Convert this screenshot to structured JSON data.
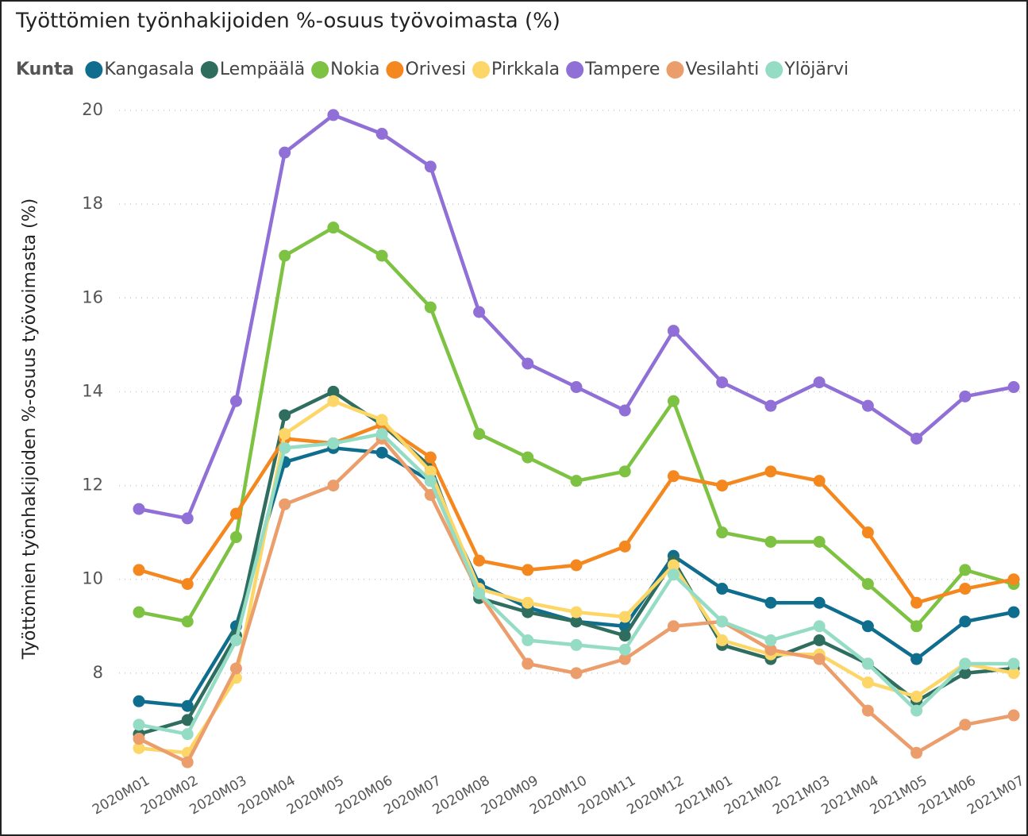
{
  "chart_data": {
    "type": "line",
    "title": "Työttömien työnhakijoiden %-osuus työvoimasta (%)",
    "legend_title": "Kunta",
    "y_label": "Työttömien työnhakijoiden %-osuus työvoimasta (%)",
    "categories": [
      "2020M01",
      "2020M02",
      "2020M03",
      "2020M04",
      "2020M05",
      "2020M06",
      "2020M07",
      "2020M08",
      "2020M09",
      "2020M10",
      "2020M11",
      "2020M12",
      "2021M01",
      "2021M02",
      "2021M03",
      "2021M04",
      "2021M05",
      "2021M06",
      "2021M07"
    ],
    "ylim": [
      6,
      20
    ],
    "yticks": [
      8,
      10,
      12,
      14,
      16,
      18,
      20
    ],
    "grid": true,
    "legend": "top",
    "series": [
      {
        "name": "Kangasala",
        "color": "#0f6e8e",
        "values": [
          7.4,
          7.3,
          9.0,
          12.5,
          12.8,
          12.7,
          12.1,
          9.9,
          9.4,
          9.1,
          9.0,
          10.5,
          9.8,
          9.5,
          9.5,
          9.0,
          8.3,
          9.1,
          9.3
        ]
      },
      {
        "name": "Lempäälä",
        "color": "#2f6e5f",
        "values": [
          6.7,
          7.0,
          8.8,
          13.5,
          14.0,
          13.3,
          12.4,
          9.6,
          9.3,
          9.1,
          8.8,
          10.4,
          8.6,
          8.3,
          8.7,
          8.2,
          7.4,
          8.0,
          8.1
        ]
      },
      {
        "name": "Nokia",
        "color": "#7dc242",
        "values": [
          9.3,
          9.1,
          10.9,
          16.9,
          17.5,
          16.9,
          15.8,
          13.1,
          12.6,
          12.1,
          12.3,
          13.8,
          11.0,
          10.8,
          10.8,
          9.9,
          9.0,
          10.2,
          9.9
        ]
      },
      {
        "name": "Orivesi",
        "color": "#f5871f",
        "values": [
          10.2,
          9.9,
          11.4,
          13.0,
          12.9,
          13.3,
          12.6,
          10.4,
          10.2,
          10.3,
          10.7,
          12.2,
          12.0,
          12.3,
          12.1,
          11.0,
          9.5,
          9.8,
          10.0
        ]
      },
      {
        "name": "Pirkkala",
        "color": "#fdd668",
        "values": [
          6.4,
          6.3,
          7.9,
          13.1,
          13.8,
          13.4,
          12.3,
          9.8,
          9.5,
          9.3,
          9.2,
          10.3,
          8.7,
          8.4,
          8.4,
          7.8,
          7.5,
          8.2,
          8.0
        ]
      },
      {
        "name": "Tampere",
        "color": "#9070d6",
        "values": [
          11.5,
          11.3,
          13.8,
          19.1,
          19.9,
          19.5,
          18.8,
          15.7,
          14.6,
          14.1,
          13.6,
          15.3,
          14.2,
          13.7,
          14.2,
          13.7,
          13.0,
          13.9,
          14.1
        ]
      },
      {
        "name": "Vesilahti",
        "color": "#eb9e6c",
        "values": [
          6.6,
          6.1,
          8.1,
          11.6,
          12.0,
          13.0,
          11.8,
          9.7,
          8.2,
          8.0,
          8.3,
          9.0,
          9.1,
          8.5,
          8.3,
          7.2,
          6.3,
          6.9,
          7.1
        ]
      },
      {
        "name": "Ylöjärvi",
        "color": "#95dcc5",
        "values": [
          6.9,
          6.7,
          8.7,
          12.8,
          12.9,
          13.1,
          12.1,
          9.7,
          8.7,
          8.6,
          8.5,
          10.1,
          9.1,
          8.7,
          9.0,
          8.2,
          7.2,
          8.2,
          8.2
        ]
      }
    ]
  }
}
